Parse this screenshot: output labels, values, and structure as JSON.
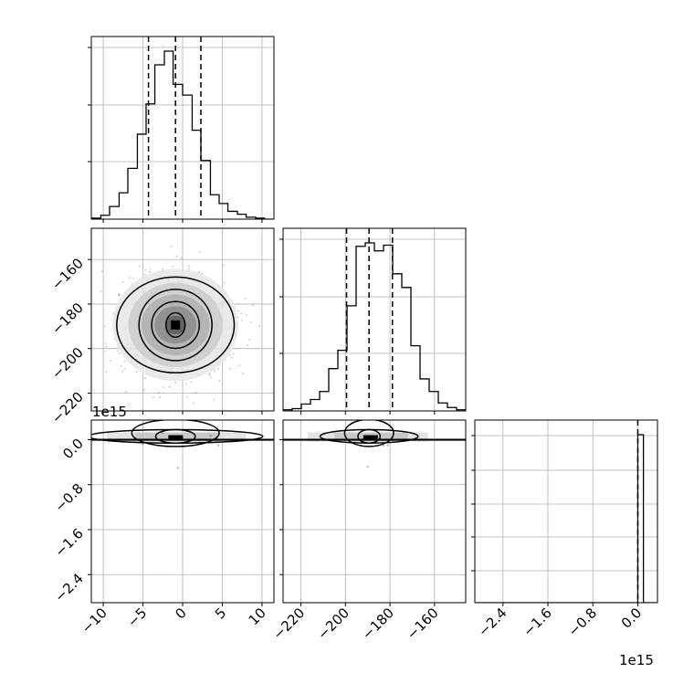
{
  "chart_data": {
    "type": "corner",
    "grid": true,
    "x_axis": {
      "ticks": [
        -10,
        -5,
        0,
        5,
        10
      ],
      "tick_labels": [
        "−10",
        "−5",
        "0",
        "5",
        "10"
      ],
      "range": [
        -11.5,
        11.5
      ]
    },
    "y_axis": {
      "ticks": [
        -160,
        -180,
        -200,
        -220
      ],
      "tick_labels": [
        "−160",
        "−180",
        "−200",
        "−220"
      ],
      "range": [
        -228,
        -146
      ]
    },
    "z_axis": {
      "ticks": [
        0.0,
        -0.8,
        -1.6,
        -2.4
      ],
      "tick_labels": [
        "0.0",
        "−0.8",
        "−1.6",
        "−2.4"
      ],
      "range": [
        -2.9,
        0.35
      ],
      "offset_label": "1e15"
    },
    "quantiles_x": [
      -4.3,
      -0.9,
      2.3
    ],
    "quantiles_y": [
      -199.5,
      -189.4,
      -178.9
    ],
    "quantiles_z": [
      0.0
    ],
    "hist_x": {
      "bin_edges": [
        -11.5,
        -10.3,
        -9.2,
        -8.0,
        -6.9,
        -5.7,
        -4.6,
        -3.5,
        -2.3,
        -1.2,
        0.0,
        1.2,
        2.3,
        3.5,
        4.6,
        5.7,
        6.9,
        8.0,
        9.2,
        10.3,
        11.5
      ],
      "counts": [
        1,
        4,
        13,
        27,
        52,
        87,
        118,
        158,
        172,
        138,
        127,
        91,
        60,
        25,
        16,
        8,
        5,
        2,
        1,
        0
      ]
    },
    "hist_y": {
      "bin_edges": [
        -228,
        -223.9,
        -219.8,
        -215.7,
        -211.6,
        -207.5,
        -203.4,
        -199.3,
        -195.2,
        -191.1,
        -187.0,
        -182.9,
        -178.8,
        -174.7,
        -170.6,
        -166.5,
        -162.4,
        -158.3,
        -154.2,
        -150.1,
        -146
      ],
      "counts": [
        1,
        2,
        6,
        10,
        17,
        37,
        53,
        92,
        144,
        147,
        140,
        145,
        120,
        108,
        57,
        28,
        17,
        7,
        3,
        1
      ]
    },
    "hist_z": {
      "bin_edges": [
        -2.9,
        0.0,
        0.1,
        0.35
      ],
      "counts": [
        0,
        100,
        0
      ]
    },
    "contours_xy": [
      {
        "cx": -0.9,
        "cy": -189.4,
        "rx": 1.2,
        "ry": 5.5
      },
      {
        "cx": -0.9,
        "cy": -189.4,
        "rx": 3.0,
        "ry": 10.5
      },
      {
        "cx": -0.9,
        "cy": -189.4,
        "rx": 4.6,
        "ry": 16.0
      },
      {
        "cx": -0.9,
        "cy": -189.4,
        "rx": 7.4,
        "ry": 21.5
      }
    ],
    "contours_xz": [
      {
        "cx": -0.9,
        "cy": 0.0,
        "rx": 2.5,
        "ry": 0.01
      },
      {
        "cx": -0.9,
        "cy": 0.0,
        "rx": 5.5,
        "ry": 0.02
      },
      {
        "cx": -0.9,
        "cy": 0.0,
        "rx": 11.0,
        "ry": 0.01
      }
    ],
    "contours_yz": [
      {
        "cx": -189.4,
        "cy": 0.0,
        "rx": 5.0,
        "ry": 0.01
      },
      {
        "cx": -189.4,
        "cy": 0.0,
        "rx": 11.0,
        "ry": 0.02
      },
      {
        "cx": -189.4,
        "cy": 0.0,
        "rx": 22.0,
        "ry": 0.01
      }
    ],
    "outliers_xz": [
      [
        -2.5,
        0.12
      ],
      [
        3.5,
        0.07
      ],
      [
        -5.0,
        -0.07
      ],
      [
        4.5,
        -0.1
      ],
      [
        -0.6,
        -0.5
      ]
    ],
    "outliers_yz": [
      [
        -187,
        0.06
      ],
      [
        -197,
        -0.06
      ],
      [
        -181,
        -0.1
      ],
      [
        -190,
        -0.48
      ],
      [
        -183,
        -0.1
      ]
    ]
  }
}
